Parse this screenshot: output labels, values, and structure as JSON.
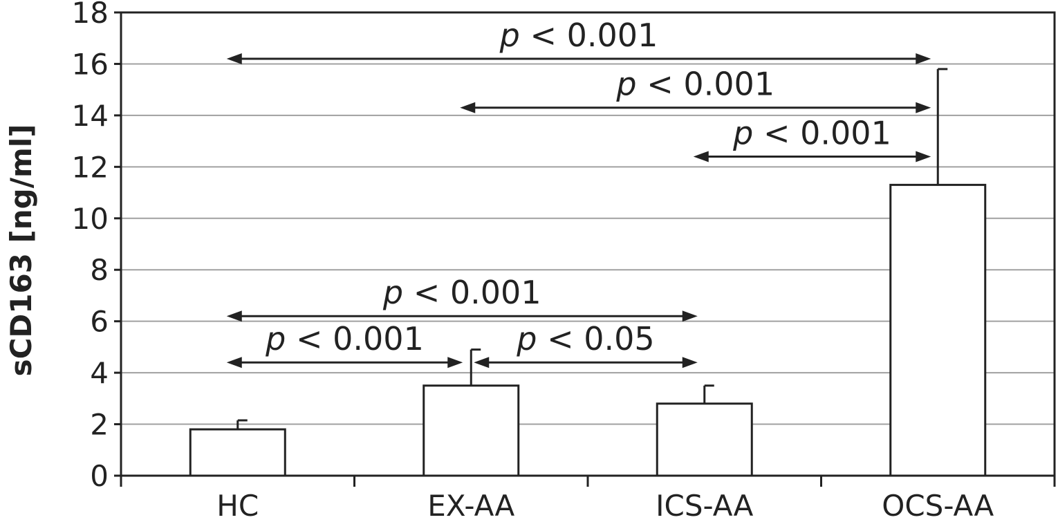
{
  "chart_data": {
    "type": "bar",
    "categories": [
      "HC",
      "EX-AA",
      "ICS-AA",
      "OCS-AA"
    ],
    "values": [
      1.8,
      3.5,
      2.8,
      11.3
    ],
    "error_upper": [
      2.15,
      4.9,
      3.5,
      15.8
    ],
    "title": "",
    "xlabel": "",
    "ylabel": "sCD163 [ng/ml]",
    "ylim": [
      0,
      18
    ],
    "yticks": [
      "0",
      "2",
      "4",
      "6",
      "8",
      "10",
      "12",
      "14",
      "16",
      "18"
    ],
    "grid": true,
    "colors": {
      "bar_fill": "#ffffff",
      "bar_stroke": "#222222",
      "grid": "#a0a0a0",
      "axis": "#222222",
      "arrow": "#222222"
    },
    "significance": [
      {
        "from": 0,
        "to": 3,
        "y": 16.2,
        "label_p": "p",
        "label_rest": " < 0.001"
      },
      {
        "from": 1,
        "to": 3,
        "y": 14.3,
        "label_p": "p",
        "label_rest": " < 0.001"
      },
      {
        "from": 2,
        "to": 3,
        "y": 12.4,
        "label_p": "p",
        "label_rest": " < 0.001"
      },
      {
        "from": 0,
        "to": 2,
        "y": 6.2,
        "label_p": "p",
        "label_rest": " < 0.001"
      },
      {
        "from": 0,
        "to": 1,
        "y": 4.4,
        "label_p": "p",
        "label_rest": " < 0.001"
      },
      {
        "from": 1,
        "to": 2,
        "y": 4.4,
        "label_p": "p",
        "label_rest": " < 0.05"
      }
    ]
  }
}
